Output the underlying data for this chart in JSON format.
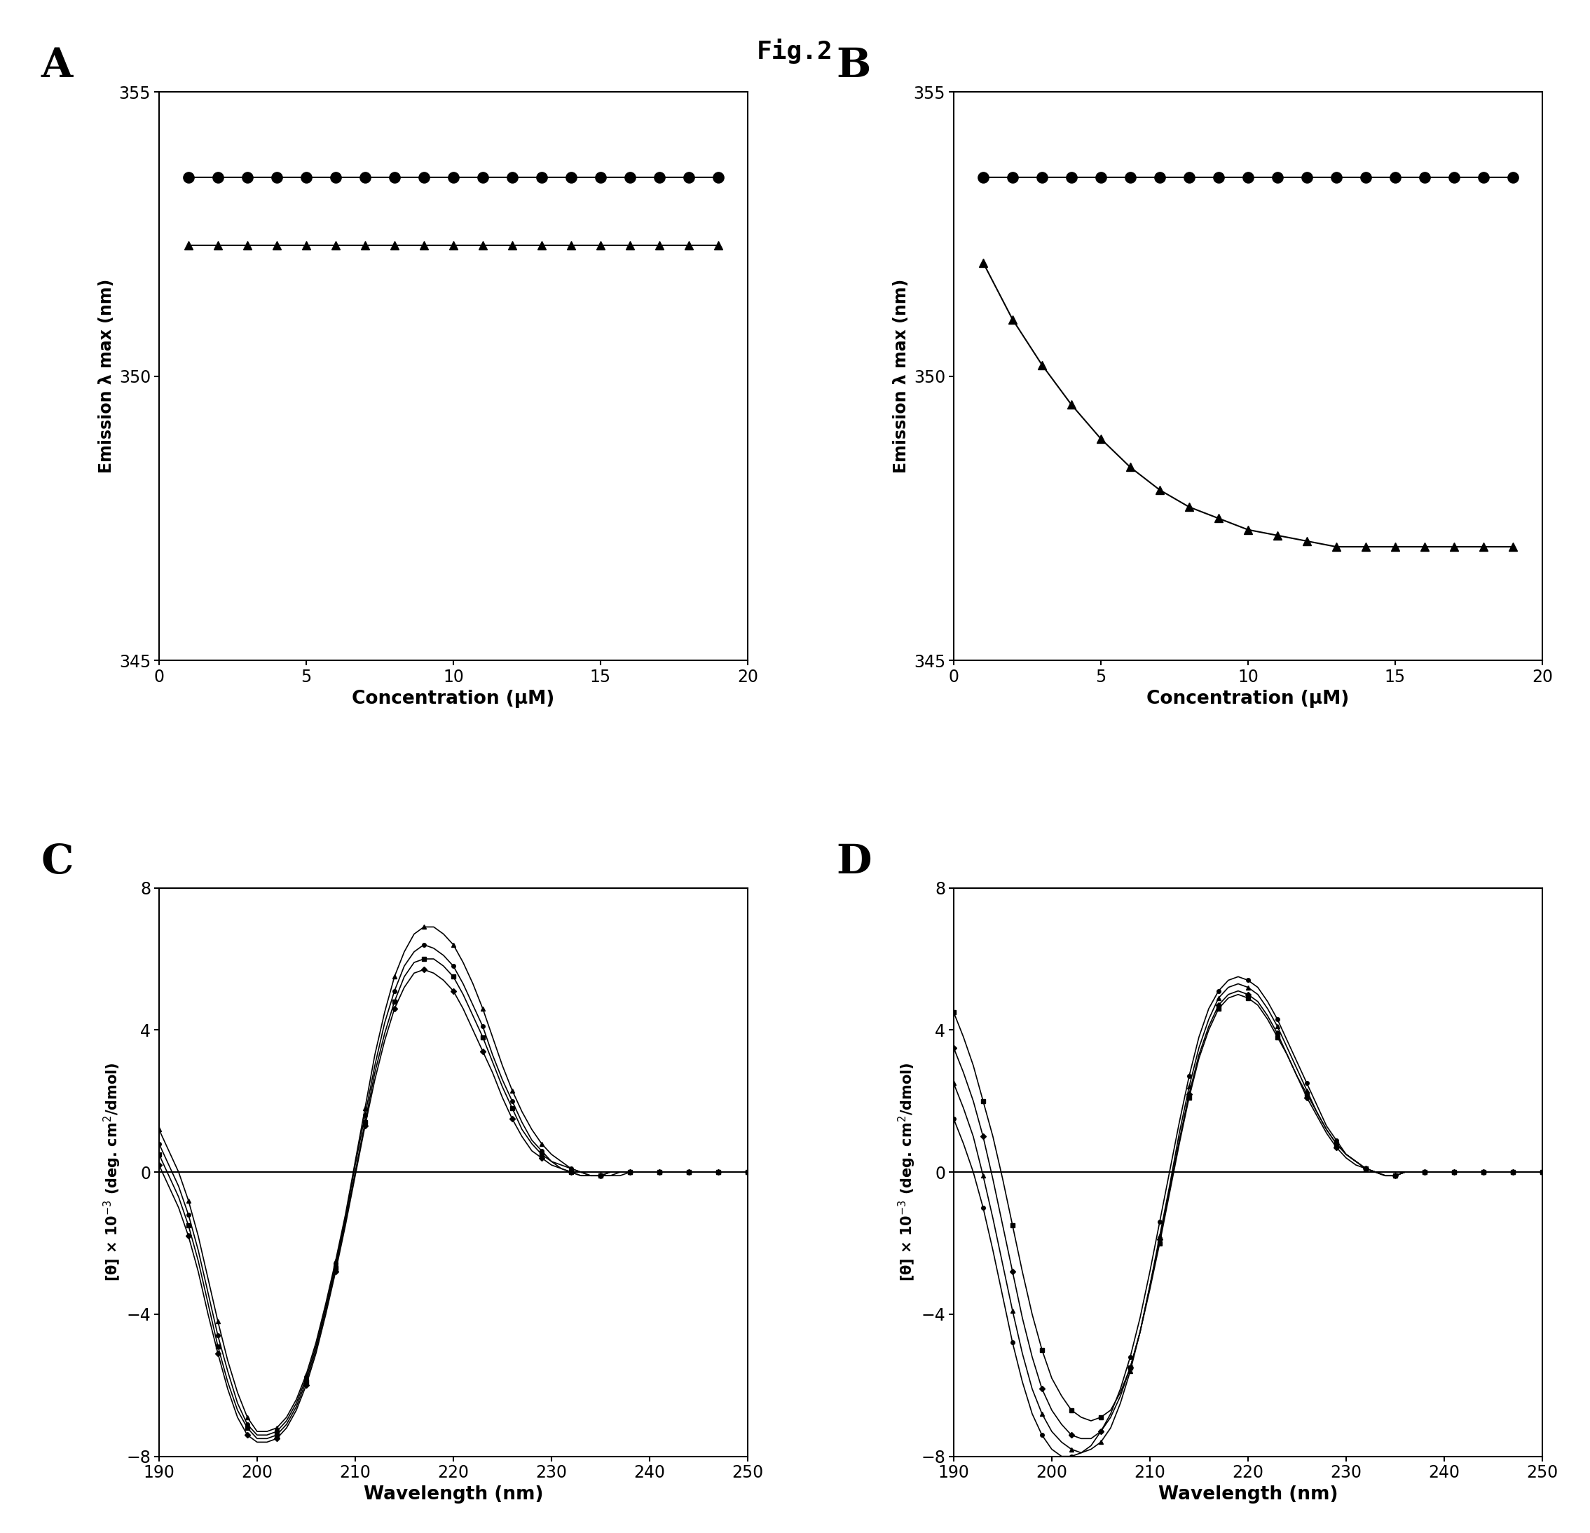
{
  "fig_title": "Fig.2",
  "panel_A": {
    "label": "A",
    "circles_x": [
      1,
      2,
      3,
      4,
      5,
      6,
      7,
      8,
      9,
      10,
      11,
      12,
      13,
      14,
      15,
      16,
      17,
      18,
      19
    ],
    "circles_y": [
      353.5,
      353.5,
      353.5,
      353.5,
      353.5,
      353.5,
      353.5,
      353.5,
      353.5,
      353.5,
      353.5,
      353.5,
      353.5,
      353.5,
      353.5,
      353.5,
      353.5,
      353.5,
      353.5
    ],
    "triangles_x": [
      1,
      2,
      3,
      4,
      5,
      6,
      7,
      8,
      9,
      10,
      11,
      12,
      13,
      14,
      15,
      16,
      17,
      18,
      19
    ],
    "triangles_y": [
      352.3,
      352.3,
      352.3,
      352.3,
      352.3,
      352.3,
      352.3,
      352.3,
      352.3,
      352.3,
      352.3,
      352.3,
      352.3,
      352.3,
      352.3,
      352.3,
      352.3,
      352.3,
      352.3
    ],
    "xlabel": "Concentration (μM)",
    "ylabel": "Emission λ max (nm)",
    "xlim": [
      0,
      20
    ],
    "ylim": [
      345,
      355
    ],
    "yticks": [
      345,
      350,
      355
    ],
    "xticks": [
      0,
      5,
      10,
      15,
      20
    ]
  },
  "panel_B": {
    "label": "B",
    "circles_x": [
      1,
      2,
      3,
      4,
      5,
      6,
      7,
      8,
      9,
      10,
      11,
      12,
      13,
      14,
      15,
      16,
      17,
      18,
      19
    ],
    "circles_y": [
      353.5,
      353.5,
      353.5,
      353.5,
      353.5,
      353.5,
      353.5,
      353.5,
      353.5,
      353.5,
      353.5,
      353.5,
      353.5,
      353.5,
      353.5,
      353.5,
      353.5,
      353.5,
      353.5
    ],
    "triangles_x": [
      1,
      2,
      3,
      4,
      5,
      6,
      7,
      8,
      9,
      10,
      11,
      12,
      13,
      14,
      15,
      16,
      17,
      18,
      19
    ],
    "triangles_y": [
      352.0,
      351.0,
      350.2,
      349.5,
      348.9,
      348.4,
      348.0,
      347.7,
      347.5,
      347.3,
      347.2,
      347.1,
      347.0,
      347.0,
      347.0,
      347.0,
      347.0,
      347.0,
      347.0
    ],
    "xlabel": "Concentration (μM)",
    "ylabel": "Emission λ max (nm)",
    "xlim": [
      0,
      20
    ],
    "ylim": [
      345,
      355
    ],
    "yticks": [
      345,
      350,
      355
    ],
    "xticks": [
      0,
      5,
      10,
      15,
      20
    ]
  },
  "panel_C": {
    "label": "C",
    "xlabel": "Wavelength (nm)",
    "ylabel": "[θ] × 10$^{-3}$ (deg. cm$^2$/dmol)",
    "xlim": [
      190,
      250
    ],
    "ylim": [
      -8,
      8
    ],
    "yticks": [
      -8,
      -4,
      0,
      4,
      8
    ],
    "xticks": [
      190,
      200,
      210,
      220,
      230,
      240,
      250
    ],
    "wavelengths": [
      190,
      191,
      192,
      193,
      194,
      195,
      196,
      197,
      198,
      199,
      200,
      201,
      202,
      203,
      204,
      205,
      206,
      207,
      208,
      209,
      210,
      211,
      212,
      213,
      214,
      215,
      216,
      217,
      218,
      219,
      220,
      221,
      222,
      223,
      224,
      225,
      226,
      227,
      228,
      229,
      230,
      231,
      232,
      233,
      234,
      235,
      236,
      237,
      238,
      239,
      240,
      241,
      242,
      243,
      244,
      245,
      246,
      247,
      248,
      249,
      250
    ],
    "curves": [
      [
        1.2,
        0.6,
        0.0,
        -0.8,
        -1.8,
        -3.0,
        -4.2,
        -5.3,
        -6.2,
        -6.9,
        -7.3,
        -7.3,
        -7.2,
        -6.9,
        -6.4,
        -5.7,
        -4.8,
        -3.7,
        -2.5,
        -1.2,
        0.3,
        1.8,
        3.3,
        4.5,
        5.5,
        6.2,
        6.7,
        6.9,
        6.9,
        6.7,
        6.4,
        5.9,
        5.3,
        4.6,
        3.8,
        3.0,
        2.3,
        1.7,
        1.2,
        0.8,
        0.5,
        0.3,
        0.1,
        0.0,
        -0.1,
        -0.1,
        -0.1,
        -0.1,
        0.0,
        0.0,
        0.0,
        0.0,
        0.0,
        0.0,
        0.0,
        0.0,
        0.0,
        0.0,
        0.0,
        0.0,
        0.0
      ],
      [
        0.8,
        0.2,
        -0.4,
        -1.2,
        -2.2,
        -3.4,
        -4.6,
        -5.6,
        -6.5,
        -7.1,
        -7.4,
        -7.4,
        -7.3,
        -7.0,
        -6.5,
        -5.8,
        -4.9,
        -3.8,
        -2.6,
        -1.3,
        0.2,
        1.6,
        3.0,
        4.2,
        5.1,
        5.8,
        6.2,
        6.4,
        6.3,
        6.1,
        5.8,
        5.3,
        4.7,
        4.1,
        3.3,
        2.6,
        2.0,
        1.4,
        0.9,
        0.6,
        0.3,
        0.2,
        0.1,
        0.0,
        -0.1,
        -0.1,
        -0.1,
        0.0,
        0.0,
        0.0,
        0.0,
        0.0,
        0.0,
        0.0,
        0.0,
        0.0,
        0.0,
        0.0,
        0.0,
        0.0,
        0.0
      ],
      [
        0.5,
        -0.1,
        -0.7,
        -1.5,
        -2.5,
        -3.7,
        -4.9,
        -5.9,
        -6.7,
        -7.2,
        -7.5,
        -7.5,
        -7.4,
        -7.1,
        -6.6,
        -5.9,
        -5.0,
        -3.9,
        -2.7,
        -1.4,
        0.0,
        1.4,
        2.8,
        3.9,
        4.8,
        5.5,
        5.9,
        6.0,
        6.0,
        5.8,
        5.5,
        5.0,
        4.4,
        3.8,
        3.1,
        2.4,
        1.8,
        1.2,
        0.8,
        0.5,
        0.3,
        0.1,
        0.0,
        -0.1,
        -0.1,
        -0.1,
        0.0,
        0.0,
        0.0,
        0.0,
        0.0,
        0.0,
        0.0,
        0.0,
        0.0,
        0.0,
        0.0,
        0.0,
        0.0,
        0.0,
        0.0
      ],
      [
        0.2,
        -0.4,
        -1.0,
        -1.8,
        -2.8,
        -4.0,
        -5.1,
        -6.1,
        -6.9,
        -7.4,
        -7.6,
        -7.6,
        -7.5,
        -7.2,
        -6.7,
        -6.0,
        -5.1,
        -4.0,
        -2.8,
        -1.5,
        -0.1,
        1.3,
        2.6,
        3.7,
        4.6,
        5.2,
        5.6,
        5.7,
        5.6,
        5.4,
        5.1,
        4.6,
        4.0,
        3.4,
        2.8,
        2.1,
        1.5,
        1.0,
        0.6,
        0.4,
        0.2,
        0.1,
        0.0,
        -0.1,
        -0.1,
        -0.1,
        0.0,
        0.0,
        0.0,
        0.0,
        0.0,
        0.0,
        0.0,
        0.0,
        0.0,
        0.0,
        0.0,
        0.0,
        0.0,
        0.0,
        0.0
      ]
    ]
  },
  "panel_D": {
    "label": "D",
    "xlabel": "Wavelength (nm)",
    "ylabel": "[θ] × 10$^{-3}$ (deg. cm$^2$/dmol)",
    "xlim": [
      190,
      250
    ],
    "ylim": [
      -8,
      8
    ],
    "yticks": [
      -8,
      -4,
      0,
      4,
      8
    ],
    "xticks": [
      190,
      200,
      210,
      220,
      230,
      240,
      250
    ],
    "wavelengths": [
      190,
      191,
      192,
      193,
      194,
      195,
      196,
      197,
      198,
      199,
      200,
      201,
      202,
      203,
      204,
      205,
      206,
      207,
      208,
      209,
      210,
      211,
      212,
      213,
      214,
      215,
      216,
      217,
      218,
      219,
      220,
      221,
      222,
      223,
      224,
      225,
      226,
      227,
      228,
      229,
      230,
      231,
      232,
      233,
      234,
      235,
      236,
      237,
      238,
      239,
      240,
      241,
      242,
      243,
      244,
      245,
      246,
      247,
      248,
      249,
      250
    ],
    "curves": [
      [
        4.5,
        3.8,
        3.0,
        2.0,
        1.0,
        -0.2,
        -1.5,
        -2.8,
        -4.0,
        -5.0,
        -5.8,
        -6.3,
        -6.7,
        -6.9,
        -7.0,
        -6.9,
        -6.7,
        -6.2,
        -5.5,
        -4.5,
        -3.3,
        -2.0,
        -0.6,
        0.8,
        2.1,
        3.2,
        4.0,
        4.6,
        4.9,
        5.0,
        4.9,
        4.7,
        4.3,
        3.8,
        3.3,
        2.7,
        2.2,
        1.7,
        1.2,
        0.8,
        0.5,
        0.3,
        0.1,
        0.0,
        -0.1,
        -0.1,
        0.0,
        0.0,
        0.0,
        0.0,
        0.0,
        0.0,
        0.0,
        0.0,
        0.0,
        0.0,
        0.0,
        0.0,
        0.0,
        0.0,
        0.0
      ],
      [
        3.5,
        2.8,
        2.0,
        1.0,
        -0.2,
        -1.5,
        -2.8,
        -4.1,
        -5.2,
        -6.1,
        -6.7,
        -7.1,
        -7.4,
        -7.5,
        -7.5,
        -7.3,
        -6.9,
        -6.3,
        -5.5,
        -4.5,
        -3.2,
        -1.9,
        -0.5,
        0.9,
        2.2,
        3.3,
        4.1,
        4.7,
        5.0,
        5.1,
        5.0,
        4.8,
        4.4,
        3.9,
        3.3,
        2.7,
        2.1,
        1.6,
        1.1,
        0.7,
        0.4,
        0.2,
        0.1,
        0.0,
        -0.1,
        -0.1,
        0.0,
        0.0,
        0.0,
        0.0,
        0.0,
        0.0,
        0.0,
        0.0,
        0.0,
        0.0,
        0.0,
        0.0,
        0.0,
        0.0,
        0.0
      ],
      [
        2.5,
        1.8,
        1.0,
        -0.1,
        -1.3,
        -2.6,
        -3.9,
        -5.1,
        -6.1,
        -6.8,
        -7.3,
        -7.6,
        -7.8,
        -7.9,
        -7.8,
        -7.6,
        -7.2,
        -6.5,
        -5.6,
        -4.5,
        -3.2,
        -1.8,
        -0.4,
        1.1,
        2.4,
        3.5,
        4.3,
        4.9,
        5.2,
        5.3,
        5.2,
        5.0,
        4.6,
        4.1,
        3.5,
        2.9,
        2.3,
        1.7,
        1.2,
        0.8,
        0.5,
        0.3,
        0.1,
        0.0,
        -0.1,
        -0.1,
        0.0,
        0.0,
        0.0,
        0.0,
        0.0,
        0.0,
        0.0,
        0.0,
        0.0,
        0.0,
        0.0,
        0.0,
        0.0,
        0.0,
        0.0
      ],
      [
        1.5,
        0.8,
        0.0,
        -1.0,
        -2.2,
        -3.5,
        -4.8,
        -5.9,
        -6.8,
        -7.4,
        -7.8,
        -8.0,
        -8.0,
        -7.9,
        -7.7,
        -7.3,
        -6.8,
        -6.1,
        -5.2,
        -4.1,
        -2.8,
        -1.4,
        0.0,
        1.4,
        2.7,
        3.8,
        4.6,
        5.1,
        5.4,
        5.5,
        5.4,
        5.2,
        4.8,
        4.3,
        3.7,
        3.1,
        2.5,
        1.9,
        1.3,
        0.9,
        0.5,
        0.3,
        0.1,
        0.0,
        -0.1,
        -0.1,
        0.0,
        0.0,
        0.0,
        0.0,
        0.0,
        0.0,
        0.0,
        0.0,
        0.0,
        0.0,
        0.0,
        0.0,
        0.0,
        0.0,
        0.0
      ]
    ]
  },
  "marker_color": "#000000",
  "background_color": "#ffffff",
  "fig_bg": "#c8c8c8"
}
